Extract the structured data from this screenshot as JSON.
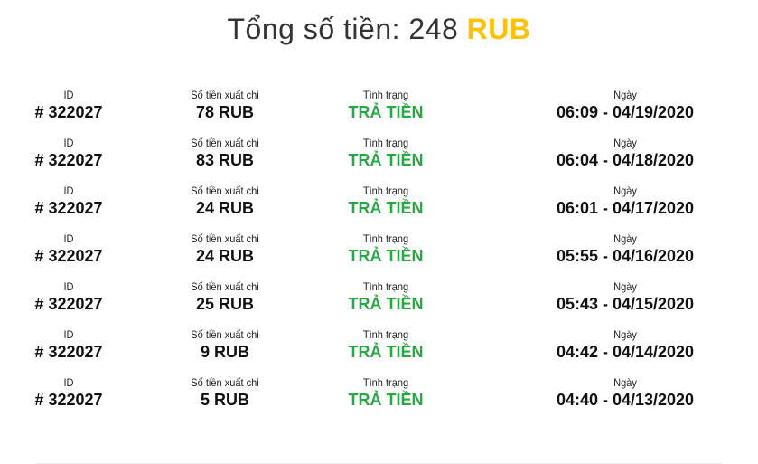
{
  "header": {
    "title": "Tổng số tiền: 248",
    "currency": "RUB"
  },
  "labels": {
    "id": "ID",
    "amount": "Số tiền xuất chi",
    "status": "Tình trạng",
    "date": "Ngày"
  },
  "status_color": "#28a745",
  "accent_color": "#ffc107",
  "transactions": [
    {
      "id": "# 322027",
      "amount": "78 RUB",
      "status": "TRẢ TIỀN",
      "date": "06:09 - 04/19/2020"
    },
    {
      "id": "# 322027",
      "amount": "83 RUB",
      "status": "TRẢ TIỀN",
      "date": "06:04 - 04/18/2020"
    },
    {
      "id": "# 322027",
      "amount": "24 RUB",
      "status": "TRẢ TIỀN",
      "date": "06:01 - 04/17/2020"
    },
    {
      "id": "# 322027",
      "amount": "24 RUB",
      "status": "TRẢ TIỀN",
      "date": "05:55 - 04/16/2020"
    },
    {
      "id": "# 322027",
      "amount": "25 RUB",
      "status": "TRẢ TIỀN",
      "date": "05:43 - 04/15/2020"
    },
    {
      "id": "# 322027",
      "amount": "9 RUB",
      "status": "TRẢ TIỀN",
      "date": "04:42 - 04/14/2020"
    },
    {
      "id": "# 322027",
      "amount": "5 RUB",
      "status": "TRẢ TIỀN",
      "date": "04:40 - 04/13/2020"
    }
  ]
}
